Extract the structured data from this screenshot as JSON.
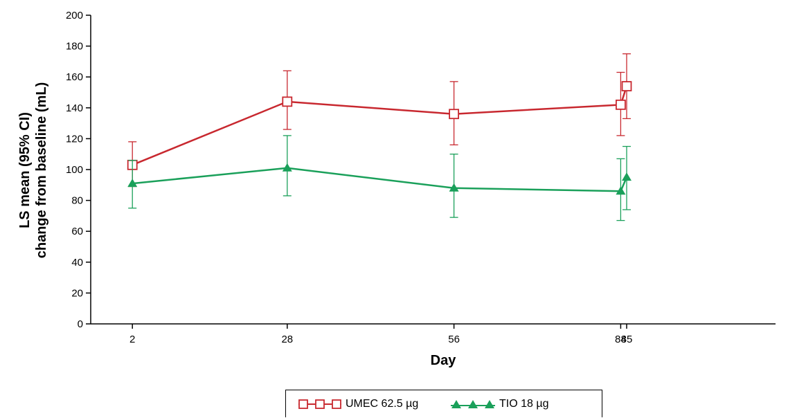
{
  "chart_data": {
    "type": "line",
    "x": [
      2,
      28,
      56,
      84,
      85
    ],
    "x_tick_labels": [
      "2",
      "28",
      "56",
      "84",
      "85"
    ],
    "xlabel": "Day",
    "ylabel_line1": "LS mean (95% CI)",
    "ylabel_line2": "change from baseline (mL)",
    "xlim": [
      -5,
      110
    ],
    "ylim": [
      0,
      200
    ],
    "y_ticks": [
      0,
      20,
      40,
      60,
      80,
      100,
      120,
      140,
      160,
      180,
      200
    ],
    "grid": false,
    "legend_position": "bottom-center",
    "series": [
      {
        "name": "UMEC 62.5 µg",
        "color": "#c8282f",
        "marker": "open-square",
        "values": [
          103,
          144,
          136,
          142,
          154
        ],
        "ci_low": [
          89,
          126,
          116,
          122,
          133
        ],
        "ci_high": [
          118,
          164,
          157,
          163,
          175
        ]
      },
      {
        "name": "TIO 18 µg",
        "color": "#1aa05a",
        "marker": "filled-triangle",
        "values": [
          91,
          101,
          88,
          86,
          95
        ],
        "ci_low": [
          75,
          83,
          69,
          67,
          74
        ],
        "ci_high": [
          106,
          122,
          110,
          107,
          115
        ]
      }
    ]
  }
}
